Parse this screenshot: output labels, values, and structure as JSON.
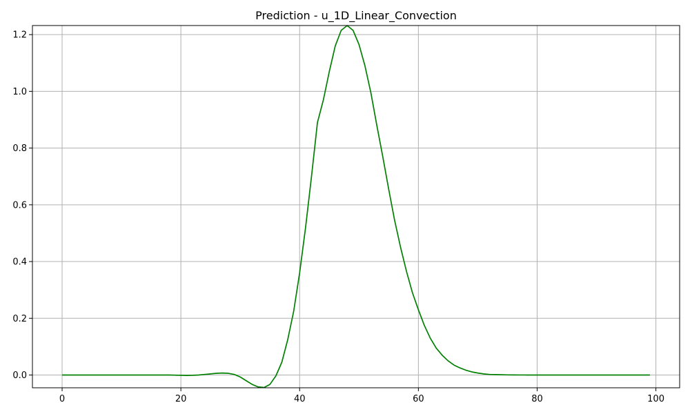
{
  "chart_data": {
    "type": "line",
    "title": "Prediction - u_1D_Linear_Convection",
    "xlabel": "",
    "ylabel": "",
    "xlim": [
      -5,
      104
    ],
    "ylim": [
      -0.045,
      1.232
    ],
    "xticks": [
      0,
      20,
      40,
      60,
      80,
      100
    ],
    "xtick_labels": [
      "0",
      "20",
      "40",
      "60",
      "80",
      "100"
    ],
    "yticks": [
      0.0,
      0.2,
      0.4,
      0.6,
      0.8,
      1.0,
      1.2
    ],
    "ytick_labels": [
      "0.0",
      "0.2",
      "0.4",
      "0.6",
      "0.8",
      "1.0",
      "1.2"
    ],
    "grid": true,
    "series": [
      {
        "color": "#008000",
        "x": [
          0,
          1,
          2,
          3,
          4,
          5,
          6,
          7,
          8,
          9,
          10,
          11,
          12,
          13,
          14,
          15,
          16,
          17,
          18,
          19,
          20,
          21,
          22,
          23,
          24,
          25,
          26,
          27,
          28,
          29,
          30,
          31,
          32,
          33,
          34,
          35,
          36,
          37,
          38,
          39,
          40,
          41,
          42,
          43,
          44,
          45,
          46,
          47,
          48,
          49,
          50,
          51,
          52,
          53,
          54,
          55,
          56,
          57,
          58,
          59,
          60,
          61,
          62,
          63,
          64,
          65,
          66,
          67,
          68,
          69,
          70,
          71,
          72,
          73,
          74,
          75,
          76,
          77,
          78,
          79,
          80,
          81,
          82,
          83,
          84,
          85,
          86,
          87,
          88,
          89,
          90,
          91,
          92,
          93,
          94,
          95,
          96,
          97,
          98,
          99
        ],
        "y": [
          0.0,
          0.0,
          0.0,
          0.0,
          0.0,
          0.0,
          0.0,
          0.0,
          0.0,
          0.0,
          0.0,
          0.0,
          0.0,
          0.0,
          0.0,
          0.0,
          0.0,
          0.0,
          0.0,
          -0.0005,
          -0.001,
          -0.0015,
          -0.001,
          0.0,
          0.002,
          0.004,
          0.006,
          0.007,
          0.006,
          0.002,
          -0.007,
          -0.02,
          -0.033,
          -0.042,
          -0.044,
          -0.033,
          -0.003,
          0.045,
          0.125,
          0.225,
          0.36,
          0.52,
          0.7,
          0.89,
          0.97,
          1.07,
          1.16,
          1.215,
          1.232,
          1.215,
          1.165,
          1.09,
          0.995,
          0.88,
          0.77,
          0.655,
          0.545,
          0.45,
          0.365,
          0.29,
          0.23,
          0.175,
          0.13,
          0.095,
          0.07,
          0.05,
          0.035,
          0.025,
          0.017,
          0.011,
          0.007,
          0.004,
          0.002,
          0.0015,
          0.001,
          0.0005,
          0.0003,
          0.0002,
          0.0001,
          0.0,
          0.0,
          0.0,
          0.0,
          0.0,
          0.0,
          0.0,
          0.0,
          0.0,
          0.0,
          0.0,
          0.0,
          0.0,
          0.0,
          0.0,
          0.0,
          0.0,
          0.0,
          0.0,
          0.0,
          0.0
        ]
      }
    ]
  }
}
